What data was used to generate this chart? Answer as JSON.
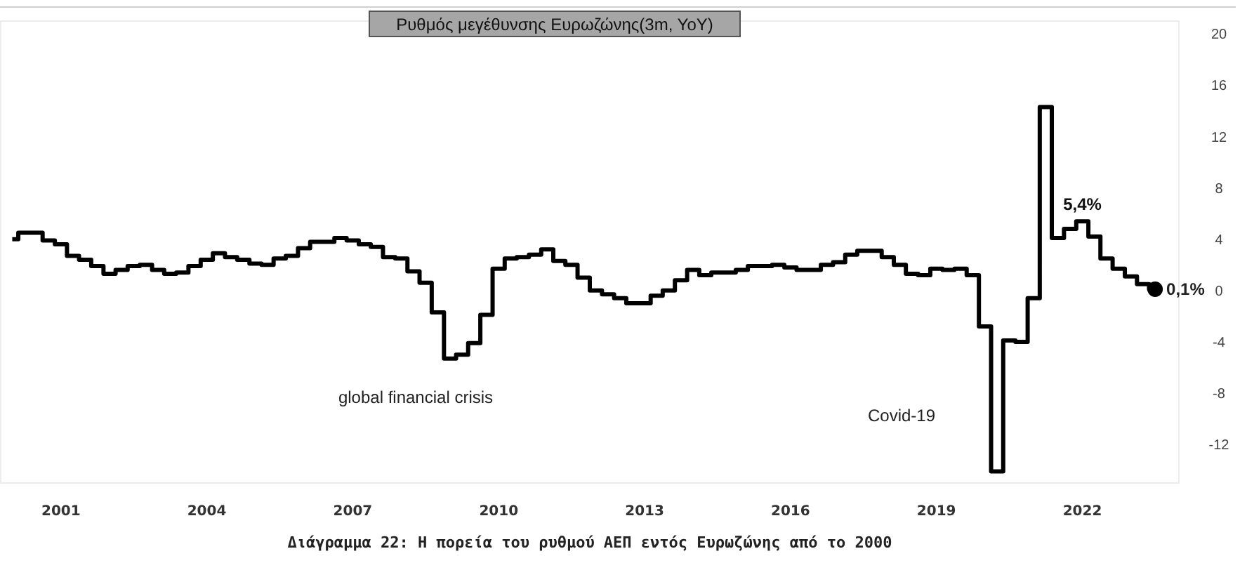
{
  "chart_data": {
    "type": "step",
    "title": "Ρυθμός μεγέθυνσης Ευρωζώνης(3m, YoY)",
    "x": [
      "2000-01",
      "2000-04",
      "2000-07",
      "2000-10",
      "2001-01",
      "2001-04",
      "2001-07",
      "2001-10",
      "2002-01",
      "2002-04",
      "2002-07",
      "2002-10",
      "2003-01",
      "2003-04",
      "2003-07",
      "2003-10",
      "2004-01",
      "2004-04",
      "2004-07",
      "2004-10",
      "2005-01",
      "2005-04",
      "2005-07",
      "2005-10",
      "2006-01",
      "2006-04",
      "2006-07",
      "2006-10",
      "2007-01",
      "2007-04",
      "2007-07",
      "2007-10",
      "2008-01",
      "2008-04",
      "2008-07",
      "2008-10",
      "2009-01",
      "2009-04",
      "2009-07",
      "2009-10",
      "2010-01",
      "2010-04",
      "2010-07",
      "2010-10",
      "2011-01",
      "2011-04",
      "2011-07",
      "2011-10",
      "2012-01",
      "2012-04",
      "2012-07",
      "2012-10",
      "2013-01",
      "2013-04",
      "2013-07",
      "2013-10",
      "2014-01",
      "2014-04",
      "2014-07",
      "2014-10",
      "2015-01",
      "2015-04",
      "2015-07",
      "2015-10",
      "2016-01",
      "2016-04",
      "2016-07",
      "2016-10",
      "2017-01",
      "2017-04",
      "2017-07",
      "2017-10",
      "2018-01",
      "2018-04",
      "2018-07",
      "2018-10",
      "2019-01",
      "2019-04",
      "2019-07",
      "2019-10",
      "2020-01",
      "2020-04",
      "2020-07",
      "2020-10",
      "2021-01",
      "2021-04",
      "2021-07",
      "2021-10",
      "2022-01",
      "2022-04",
      "2022-07",
      "2022-10",
      "2023-01",
      "2023-04",
      "2023-07"
    ],
    "series": [
      {
        "color": "#000000",
        "marker": "none",
        "values": [
          4.0,
          4.5,
          4.5,
          3.9,
          3.6,
          2.7,
          2.4,
          1.9,
          1.3,
          1.6,
          1.9,
          2.0,
          1.6,
          1.3,
          1.4,
          1.9,
          2.4,
          2.9,
          2.6,
          2.4,
          2.1,
          2.0,
          2.5,
          2.7,
          3.3,
          3.8,
          3.8,
          4.1,
          3.9,
          3.6,
          3.4,
          2.6,
          2.5,
          1.5,
          0.6,
          -1.7,
          -5.3,
          -5.0,
          -4.1,
          -1.9,
          1.7,
          2.5,
          2.6,
          2.8,
          3.2,
          2.3,
          2.0,
          1.0,
          0.0,
          -0.3,
          -0.6,
          -1.0,
          -1.0,
          -0.4,
          0.0,
          0.8,
          1.6,
          1.2,
          1.4,
          1.4,
          1.6,
          1.9,
          1.9,
          2.0,
          1.8,
          1.6,
          1.6,
          2.0,
          2.2,
          2.8,
          3.1,
          3.1,
          2.6,
          2.0,
          1.3,
          1.2,
          1.7,
          1.6,
          1.7,
          1.2,
          -2.8,
          -14.1,
          -3.9,
          -4.0,
          -0.6,
          14.3,
          4.1,
          4.8,
          5.4,
          4.2,
          2.5,
          1.7,
          1.1,
          0.5,
          0.1
        ]
      },
      {
        "type": "scatter",
        "color": "#000000",
        "marker": "circle",
        "x": [
          "2023-07"
        ],
        "values": [
          0.1
        ],
        "value_labels": [
          "0,1%"
        ]
      }
    ],
    "xlim": [
      "1999-10",
      "2024-01"
    ],
    "xticks": [
      "2001",
      "2004",
      "2007",
      "2010",
      "2013",
      "2016",
      "2019",
      "2022"
    ],
    "ylim": [
      -15,
      21
    ],
    "yticks": [
      -12,
      -8,
      -4,
      0,
      4,
      8,
      12,
      16,
      20
    ],
    "grid": false,
    "annotations": [
      "global financial crisis",
      "Covid-19",
      {
        "text": "5,4%",
        "x": "2022-01",
        "y": 5.4
      },
      "Διάγραμμα 22: Η πορεία του ρυθμού ΑΕΠ εντός Ευρωζώνης από το 2000"
    ]
  }
}
